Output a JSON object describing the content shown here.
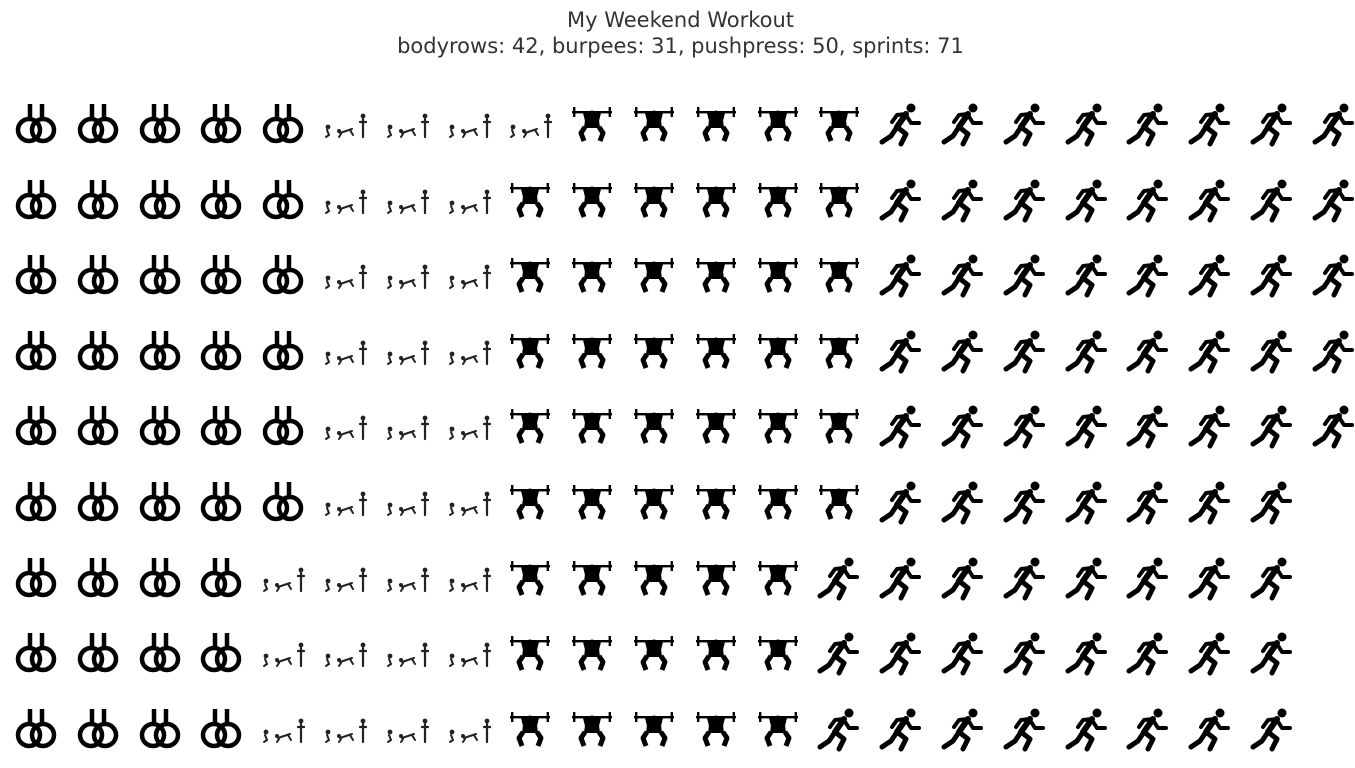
{
  "chart_data": {
    "type": "pictograph",
    "title": "My Weekend Workout",
    "subtitle": "bodyrows: 42, burpees: 31, pushpress: 50, sprints: 71",
    "series": [
      {
        "name": "bodyrows",
        "value": 42,
        "icon": "gymnastic-rings-icon"
      },
      {
        "name": "burpees",
        "value": 31,
        "icon": "burpee-icon"
      },
      {
        "name": "pushpress",
        "value": 50,
        "icon": "barbell-squat-icon"
      },
      {
        "name": "sprints",
        "value": 71,
        "icon": "running-person-icon"
      }
    ],
    "rows": [
      {
        "bodyrows": 5,
        "burpees": 4,
        "pushpress": 5,
        "sprints": 8
      },
      {
        "bodyrows": 5,
        "burpees": 3,
        "pushpress": 6,
        "sprints": 8
      },
      {
        "bodyrows": 5,
        "burpees": 3,
        "pushpress": 6,
        "sprints": 8
      },
      {
        "bodyrows": 5,
        "burpees": 3,
        "pushpress": 6,
        "sprints": 8
      },
      {
        "bodyrows": 5,
        "burpees": 3,
        "pushpress": 6,
        "sprints": 8
      },
      {
        "bodyrows": 5,
        "burpees": 3,
        "pushpress": 6,
        "sprints": 7
      },
      {
        "bodyrows": 4,
        "burpees": 4,
        "pushpress": 5,
        "sprints": 8
      },
      {
        "bodyrows": 4,
        "burpees": 4,
        "pushpress": 5,
        "sprints": 8
      },
      {
        "bodyrows": 4,
        "burpees": 4,
        "pushpress": 5,
        "sprints": 8
      }
    ]
  }
}
